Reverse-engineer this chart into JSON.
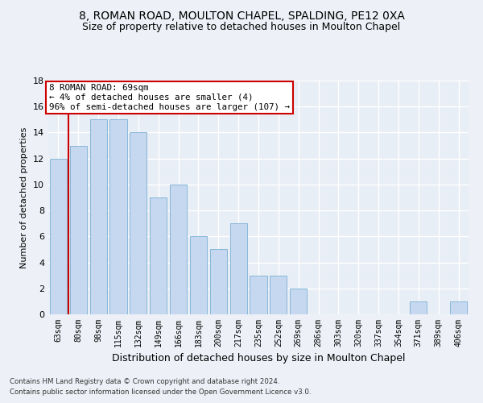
{
  "title1": "8, ROMAN ROAD, MOULTON CHAPEL, SPALDING, PE12 0XA",
  "title2": "Size of property relative to detached houses in Moulton Chapel",
  "xlabel": "Distribution of detached houses by size in Moulton Chapel",
  "ylabel": "Number of detached properties",
  "footnote1": "Contains HM Land Registry data © Crown copyright and database right 2024.",
  "footnote2": "Contains public sector information licensed under the Open Government Licence v3.0.",
  "categories": [
    "63sqm",
    "80sqm",
    "98sqm",
    "115sqm",
    "132sqm",
    "149sqm",
    "166sqm",
    "183sqm",
    "200sqm",
    "217sqm",
    "235sqm",
    "252sqm",
    "269sqm",
    "286sqm",
    "303sqm",
    "320sqm",
    "337sqm",
    "354sqm",
    "371sqm",
    "389sqm",
    "406sqm"
  ],
  "values": [
    12,
    13,
    15,
    15,
    14,
    9,
    10,
    6,
    5,
    7,
    3,
    3,
    2,
    0,
    0,
    0,
    0,
    0,
    1,
    0,
    1
  ],
  "bar_color": "#c5d8f0",
  "bar_edge_color": "#7bafd4",
  "annotation_line1": "8 ROMAN ROAD: 69sqm",
  "annotation_line2": "← 4% of detached houses are smaller (4)",
  "annotation_line3": "96% of semi-detached houses are larger (107) →",
  "annotation_box_color": "#ffffff",
  "annotation_box_edge": "#cc0000",
  "vline_color": "#cc0000",
  "ylim": [
    0,
    18
  ],
  "yticks": [
    0,
    2,
    4,
    6,
    8,
    10,
    12,
    14,
    16,
    18
  ],
  "bg_color": "#e8eef5",
  "grid_color": "#ffffff",
  "fig_bg_color": "#edf1f7",
  "title1_fontsize": 10,
  "title2_fontsize": 9,
  "xlabel_fontsize": 9,
  "ylabel_fontsize": 8,
  "annot_fontsize": 7.8,
  "tick_fontsize": 7,
  "ytick_fontsize": 8
}
